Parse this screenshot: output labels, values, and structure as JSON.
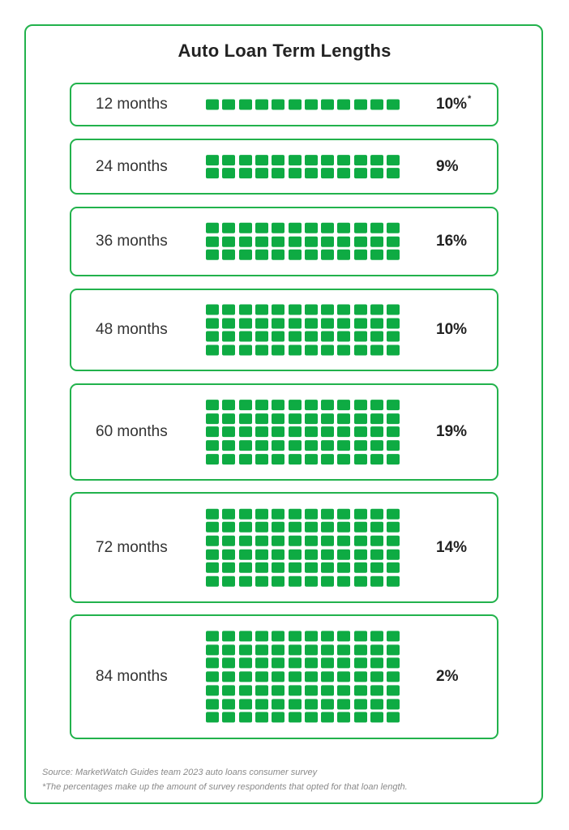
{
  "chart_data": {
    "type": "table",
    "title": "Auto Loan Term Lengths",
    "accent_color": "#0eab43",
    "border_color": "#22b24c",
    "rows": [
      {
        "term": "12 months",
        "value": 10,
        "label": "10%",
        "marker": "*",
        "grid_rows": 1
      },
      {
        "term": "24 months",
        "value": 9,
        "label": "9%",
        "marker": "",
        "grid_rows": 2
      },
      {
        "term": "36 months",
        "value": 16,
        "label": "16%",
        "marker": "",
        "grid_rows": 3
      },
      {
        "term": "48 months",
        "value": 10,
        "label": "10%",
        "marker": "",
        "grid_rows": 4
      },
      {
        "term": "60 months",
        "value": 19,
        "label": "19%",
        "marker": "",
        "grid_rows": 5
      },
      {
        "term": "72 months",
        "value": 14,
        "label": "14%",
        "marker": "",
        "grid_rows": 6
      },
      {
        "term": "84 months",
        "value": 2,
        "label": "2%",
        "marker": "",
        "grid_rows": 7
      }
    ],
    "squares_per_row": 12
  },
  "footer": {
    "source": "Source: MarketWatch Guides team 2023 auto loans consumer survey",
    "note": "*The percentages make up the amount of survey respondents that opted for that loan length."
  }
}
